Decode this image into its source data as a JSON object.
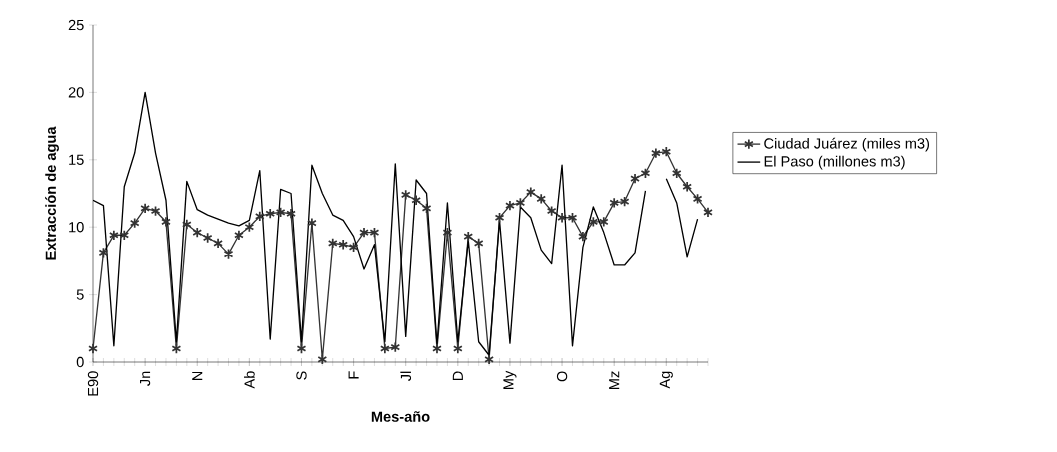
{
  "chart_data": {
    "type": "line",
    "xlabel": "Mes-año",
    "ylabel": "Extracción de agua",
    "categories": [
      "E90",
      null,
      null,
      null,
      null,
      "Jn",
      null,
      null,
      null,
      null,
      "N",
      null,
      null,
      null,
      null,
      "Ab",
      null,
      null,
      null,
      null,
      "S",
      null,
      null,
      null,
      null,
      "F",
      null,
      null,
      null,
      null,
      "Jl",
      null,
      null,
      null,
      null,
      "D",
      null,
      null,
      null,
      null,
      "My",
      null,
      null,
      null,
      null,
      "O",
      null,
      null,
      null,
      null,
      "Mz",
      null,
      null,
      null,
      null,
      "Ag",
      null,
      null,
      null,
      null
    ],
    "series": [
      {
        "name": "Ciudad Juárez (miles m3)",
        "color": "#333333",
        "marker": "cross",
        "values": [
          1,
          8.1,
          9.4,
          9.4,
          10.3,
          11.4,
          11.2,
          10.4,
          1,
          10.2,
          9.6,
          9.2,
          8.8,
          8,
          9.4,
          10,
          10.8,
          11,
          11.1,
          11,
          1,
          10.3,
          0.2,
          8.8,
          8.7,
          8.5,
          9.6,
          9.6,
          1,
          1.1,
          12.4,
          12,
          11.4,
          1,
          9.6,
          1,
          9.3,
          8.8,
          0.2,
          10.7,
          11.6,
          11.8,
          12.6,
          12.1,
          11.2,
          10.7,
          10.7,
          9.3,
          10.4,
          10.4,
          11.8,
          11.9,
          13.6,
          14,
          15.5,
          15.6,
          14,
          13,
          12.1,
          11.1
        ]
      },
      {
        "name": "El Paso (millones m3)",
        "color": "#000000",
        "marker": "none",
        "values": [
          12,
          11.6,
          1.2,
          13,
          15.5,
          20,
          15.5,
          12,
          1.5,
          13.4,
          11.3,
          10.9,
          10.6,
          10.3,
          10.1,
          10.5,
          14.2,
          1.7,
          12.8,
          12.5,
          1.5,
          14.6,
          12.5,
          10.9,
          10.5,
          9.3,
          6.9,
          8.7,
          1.5,
          14.7,
          1.9,
          13.5,
          12.5,
          1.3,
          11.8,
          1.5,
          9,
          1.5,
          0.5,
          10.5,
          1.4,
          11.5,
          10.7,
          8.3,
          7.3,
          14.6,
          1.2,
          8.5,
          11.5,
          9.6,
          7.2,
          7.2,
          8.1,
          12.7,
          null,
          13.6,
          11.8,
          7.8,
          10.6,
          null
        ]
      }
    ],
    "ylim": [
      0,
      25
    ],
    "yticks": [
      0,
      5,
      10,
      15,
      20,
      25
    ],
    "grid": false,
    "legend": "right"
  }
}
